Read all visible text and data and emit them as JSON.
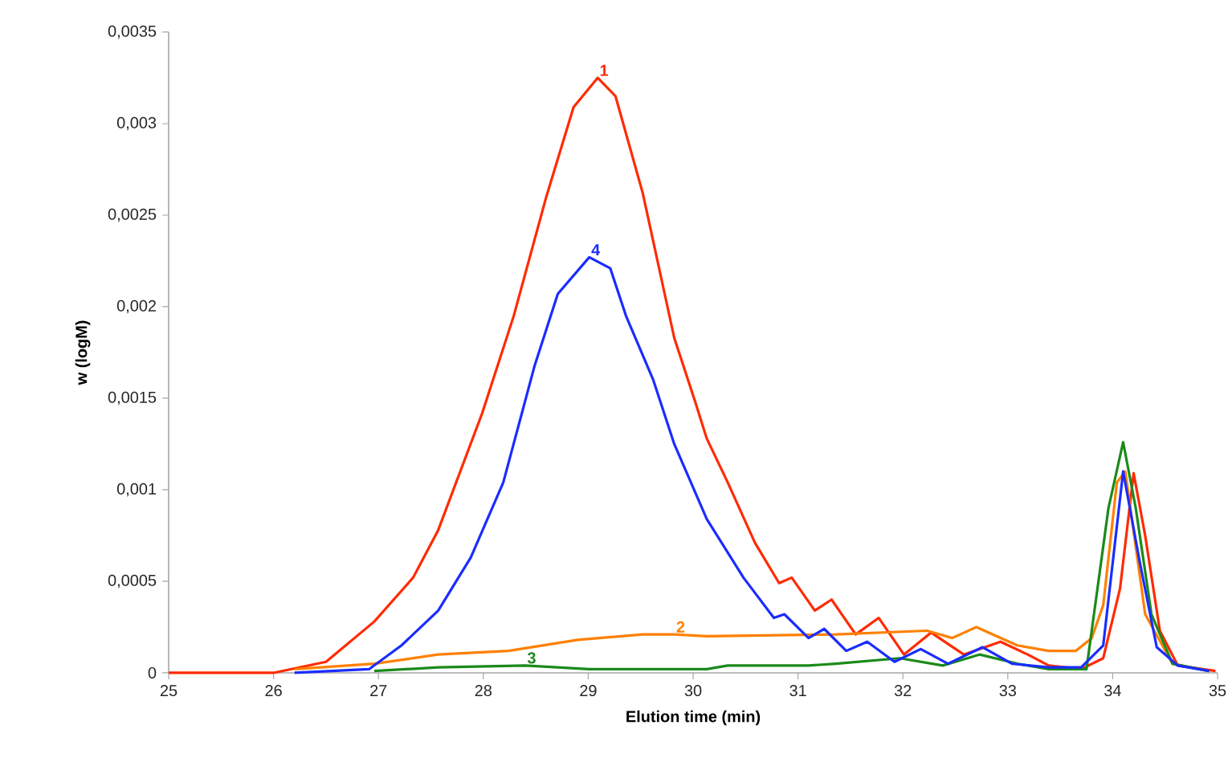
{
  "chart_data": {
    "type": "line",
    "xlabel": "Elution time (min)",
    "ylabel": "w (logM)",
    "xlim": [
      25,
      35
    ],
    "ylim": [
      0,
      0.0035
    ],
    "xticks": [
      25,
      26,
      27,
      28,
      29,
      30,
      31,
      32,
      33,
      34,
      35
    ],
    "yticks": [
      {
        "value": 0,
        "label": "0"
      },
      {
        "value": 0.0005,
        "label": "0,0005"
      },
      {
        "value": 0.001,
        "label": "0,001"
      },
      {
        "value": 0.0015,
        "label": "0,0015"
      },
      {
        "value": 0.002,
        "label": "0,002"
      },
      {
        "value": 0.0025,
        "label": "0,0025"
      },
      {
        "value": 0.003,
        "label": "0,003"
      },
      {
        "value": 0.0035,
        "label": "0,0035"
      }
    ],
    "grid": false,
    "legend": false,
    "marker": "none",
    "line_style": "solid",
    "series": [
      {
        "name": "1",
        "color": "#ff2a00",
        "x": [
          25,
          26,
          26.5,
          26.96,
          27.33,
          27.57,
          27.99,
          28.29,
          28.6,
          28.86,
          29.09,
          29.26,
          29.52,
          29.82,
          30.02,
          30.13,
          30.33,
          30.59,
          30.82,
          30.94,
          31.16,
          31.32,
          31.55,
          31.77,
          32.01,
          32.27,
          32.58,
          32.93,
          33.19,
          33.39,
          33.7,
          33.91,
          34.07,
          34.2,
          34.31,
          34.45,
          34.62,
          34.98
        ],
        "values": [
          0,
          0,
          6e-05,
          0.00028,
          0.00052,
          0.00078,
          0.00142,
          0.00195,
          0.0026,
          0.00309,
          0.00325,
          0.00315,
          0.00262,
          0.00183,
          0.00148,
          0.00128,
          0.00104,
          0.00071,
          0.00049,
          0.00052,
          0.00034,
          0.0004,
          0.00021,
          0.0003,
          0.0001,
          0.00022,
          0.0001,
          0.00017,
          0.0001,
          4e-05,
          2e-05,
          8e-05,
          0.00046,
          0.00109,
          0.00075,
          0.00023,
          4e-05,
          1e-05
        ]
      },
      {
        "name": "2",
        "color": "#ff8000",
        "x": [
          26.2,
          26.96,
          27.57,
          28.24,
          28.9,
          29.52,
          29.82,
          30.13,
          31.36,
          32.23,
          32.47,
          32.7,
          33.09,
          33.39,
          33.65,
          33.8,
          33.91,
          34.04,
          34.12,
          34.31,
          34.57,
          34.92
        ],
        "values": [
          2e-05,
          5e-05,
          0.0001,
          0.00012,
          0.00018,
          0.00021,
          0.00021,
          0.0002,
          0.00021,
          0.00023,
          0.00019,
          0.00025,
          0.00015,
          0.00012,
          0.00012,
          0.00019,
          0.00037,
          0.00104,
          0.0011,
          0.00032,
          5e-05,
          1e-05
        ]
      },
      {
        "name": "3",
        "color": "#1a8a1a",
        "x": [
          26.96,
          27.57,
          28.4,
          29.01,
          30.13,
          30.33,
          31.1,
          31.36,
          31.97,
          32.38,
          32.73,
          33.09,
          33.39,
          33.75,
          33.96,
          34.1,
          34.22,
          34.37,
          34.57,
          34.92
        ],
        "values": [
          1e-05,
          3e-05,
          4e-05,
          2e-05,
          2e-05,
          4e-05,
          4e-05,
          5e-05,
          8e-05,
          4e-05,
          0.0001,
          5e-05,
          2e-05,
          2e-05,
          0.0009,
          0.00126,
          0.0009,
          0.00032,
          5e-05,
          1e-05
        ]
      },
      {
        "name": "4",
        "color": "#1a2cff",
        "x": [
          26.2,
          26.91,
          27.22,
          27.57,
          27.88,
          28.19,
          28.49,
          28.71,
          29.01,
          29.21,
          29.36,
          29.62,
          29.82,
          30.13,
          30.48,
          30.77,
          30.87,
          31.1,
          31.25,
          31.46,
          31.66,
          31.92,
          32.17,
          32.43,
          32.76,
          33.04,
          33.39,
          33.7,
          33.91,
          34.1,
          34.26,
          34.42,
          34.62,
          34.92
        ],
        "values": [
          0,
          2e-05,
          0.00015,
          0.00034,
          0.00063,
          0.00104,
          0.00168,
          0.00207,
          0.00227,
          0.00221,
          0.00195,
          0.0016,
          0.00125,
          0.00084,
          0.00052,
          0.0003,
          0.00032,
          0.00019,
          0.00024,
          0.00012,
          0.00017,
          6e-05,
          0.00013,
          5e-05,
          0.00014,
          5e-05,
          3e-05,
          3e-05,
          0.00015,
          0.0011,
          0.0006,
          0.00014,
          4e-05,
          1e-05
        ]
      }
    ]
  }
}
